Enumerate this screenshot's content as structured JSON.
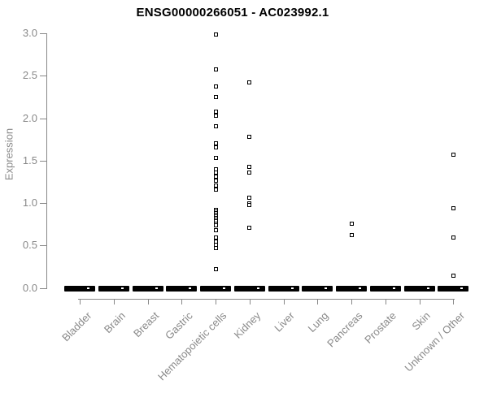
{
  "title": "ENSG00000266051 - AC023992.1",
  "chart_data": {
    "type": "scatter",
    "subtype": "strip-plot-by-category",
    "title": "ENSG00000266051 - AC023992.1",
    "xlabel": "",
    "ylabel": "Expression",
    "ylim": [
      0.0,
      3.0
    ],
    "yticks": [
      "0.0",
      "0.5",
      "1.0",
      "1.5",
      "2.0",
      "2.5",
      "3.0"
    ],
    "ytick_values": [
      0.0,
      0.5,
      1.0,
      1.5,
      2.0,
      2.5,
      3.0
    ],
    "grid": "off",
    "legend": "none",
    "marker": "open-square",
    "categories": [
      "Bladder",
      "Brain",
      "Breast",
      "Gastric",
      "Hematopoietic cells",
      "Kidney",
      "Liver",
      "Lung",
      "Pancreas",
      "Prostate",
      "Skin",
      "Unknown / Other"
    ],
    "series": [
      {
        "name": "Bladder",
        "zero_cluster": true,
        "values": []
      },
      {
        "name": "Brain",
        "zero_cluster": true,
        "values": []
      },
      {
        "name": "Breast",
        "zero_cluster": true,
        "values": []
      },
      {
        "name": "Gastric",
        "zero_cluster": true,
        "values": []
      },
      {
        "name": "Hematopoietic cells",
        "zero_cluster": true,
        "values": [
          2.99,
          2.57,
          2.37,
          2.25,
          2.08,
          2.03,
          1.9,
          1.7,
          1.66,
          1.53,
          1.4,
          1.36,
          1.31,
          1.26,
          1.21,
          1.16,
          0.92,
          0.9,
          0.88,
          0.86,
          0.84,
          0.82,
          0.8,
          0.78,
          0.76,
          0.74,
          0.68,
          0.59,
          0.55,
          0.51,
          0.47,
          0.22
        ]
      },
      {
        "name": "Kidney",
        "zero_cluster": true,
        "values": [
          2.42,
          1.78,
          1.43,
          1.36,
          1.06,
          1.0,
          0.98,
          0.71
        ]
      },
      {
        "name": "Liver",
        "zero_cluster": true,
        "values": []
      },
      {
        "name": "Lung",
        "zero_cluster": true,
        "values": []
      },
      {
        "name": "Pancreas",
        "zero_cluster": true,
        "values": [
          0.76,
          0.62
        ]
      },
      {
        "name": "Prostate",
        "zero_cluster": true,
        "values": []
      },
      {
        "name": "Skin",
        "zero_cluster": true,
        "values": []
      },
      {
        "name": "Unknown / Other",
        "zero_cluster": true,
        "values": [
          1.57,
          0.94,
          0.59,
          0.14
        ]
      }
    ],
    "annotations": "Thick black bar at y=0 in every category = many overlapping zero-expression points",
    "colors": {
      "points": "#000000",
      "zero_bar": "#000000",
      "axis_lines": "#888888",
      "axis_text": "#898989",
      "title_text": "#000000",
      "background": "#ffffff"
    }
  }
}
